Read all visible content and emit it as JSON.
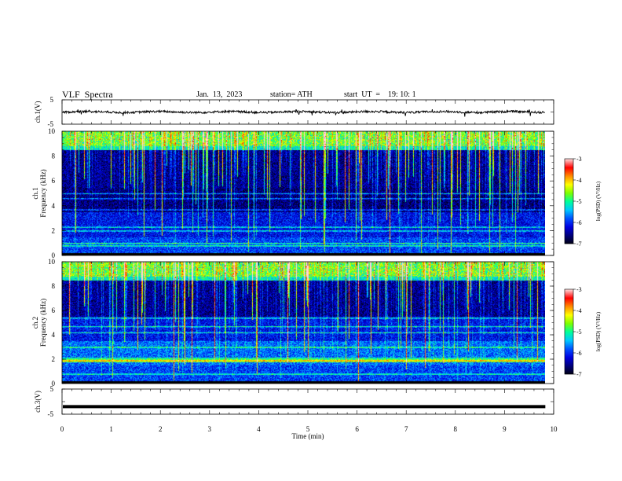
{
  "header": {
    "title": "VLF  Spectra",
    "date": "Jan.  13,  2023",
    "station": "station= ATH",
    "start_ut": "start  UT  =    19: 10: 1"
  },
  "chart_data": [
    {
      "type": "line",
      "panel": "ch1-waveform",
      "ylabel": "ch.1(V)",
      "yticks": [
        "5",
        "-5"
      ],
      "ylim": [
        -5,
        5
      ],
      "x_range_min": [
        0,
        9.83
      ],
      "description_values": "noisy signal oscillating near 0 V with spikes to about ±1 V",
      "color": "#000000"
    },
    {
      "type": "heatmap",
      "panel": "ch1-spectrogram",
      "ylabel": "ch.1\nFrequency  (kHz)",
      "yticks": [
        "0",
        "2",
        "4",
        "6",
        "8",
        "10"
      ],
      "ylim": [
        0,
        10
      ],
      "colorbar": {
        "label": "log(PSD) (V²/Hz)",
        "ticks": [
          "-3",
          "-4",
          "-5",
          "-6",
          "-7"
        ],
        "range": [
          -7,
          -3
        ]
      },
      "bands_khz": [
        0.8,
        1.0,
        2.0,
        2.3,
        3.7,
        4.6,
        5.0
      ]
    },
    {
      "type": "heatmap",
      "panel": "ch2-spectrogram",
      "ylabel": "ch.2\nFrequency  (kHz)",
      "yticks": [
        "0",
        "2",
        "4",
        "6",
        "8",
        "10"
      ],
      "ylim": [
        0,
        10
      ],
      "colorbar": {
        "label": "log(PSD) (V²/Hz)",
        "ticks": [
          "-3",
          "-4",
          "-5",
          "-6",
          "-7"
        ],
        "range": [
          -7,
          -3
        ]
      },
      "bands_khz": [
        0.8,
        1.9,
        2.1,
        3.0,
        4.2,
        4.7,
        5.4
      ]
    },
    {
      "type": "line",
      "panel": "ch3-waveform",
      "ylabel": "ch.3(V)",
      "yticks": [
        "5",
        "-5"
      ],
      "ylim": [
        -5,
        5
      ],
      "level_v": -2,
      "color": "#000000"
    }
  ],
  "xaxis": {
    "label": "Time  (min)",
    "ticks": [
      "0",
      "1",
      "2",
      "3",
      "4",
      "5",
      "6",
      "7",
      "8",
      "9",
      "10"
    ],
    "xlim": [
      0,
      10
    ],
    "data_end": 9.83
  },
  "colors": {
    "background": "#ffffff",
    "colormap": [
      "#000010",
      "#00007a",
      "#0000e0",
      "#0050ff",
      "#00c8ff",
      "#00ff9a",
      "#7cff00",
      "#ffff00",
      "#ff8c00",
      "#ff0000",
      "#ffd6d6"
    ]
  }
}
